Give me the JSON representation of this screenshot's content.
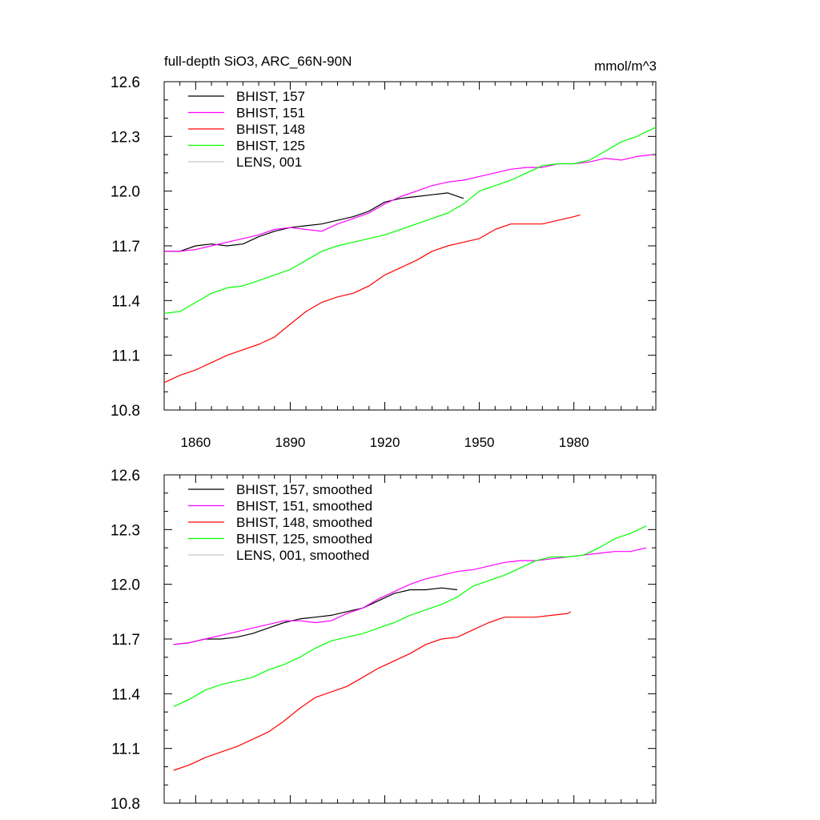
{
  "chart_data": [
    {
      "type": "line",
      "title": "full-depth SiO3, ARC_66N-90N",
      "units": "mmol/m^3",
      "xlim": [
        1850,
        2006
      ],
      "ylim": [
        10.8,
        12.6
      ],
      "xticks": [
        1860,
        1890,
        1920,
        1950,
        1980
      ],
      "xtick_labels": [
        "1860",
        "1890",
        "1920",
        "1950",
        "1980"
      ],
      "yticks": [
        10.8,
        11.1,
        11.4,
        11.7,
        12.0,
        12.3,
        12.6
      ],
      "ytick_labels": [
        "10.8",
        "11.1",
        "11.4",
        "11.7",
        "12.0",
        "12.3",
        "12.6"
      ],
      "legend_position": "top-left",
      "series": [
        {
          "name": "BHIST, 157",
          "color": "#000000",
          "x": [
            1850,
            1855,
            1860,
            1865,
            1870,
            1875,
            1880,
            1885,
            1890,
            1895,
            1900,
            1905,
            1910,
            1915,
            1920,
            1925,
            1930,
            1935,
            1940,
            1945
          ],
          "y": [
            11.67,
            11.67,
            11.7,
            11.71,
            11.7,
            11.71,
            11.75,
            11.78,
            11.8,
            11.81,
            11.82,
            11.84,
            11.86,
            11.89,
            11.94,
            11.96,
            11.97,
            11.98,
            11.99,
            11.96
          ]
        },
        {
          "name": "BHIST, 151",
          "color": "#ff00ff",
          "x": [
            1850,
            1855,
            1860,
            1865,
            1870,
            1875,
            1880,
            1885,
            1890,
            1895,
            1900,
            1905,
            1910,
            1915,
            1920,
            1925,
            1930,
            1935,
            1940,
            1945,
            1950,
            1955,
            1960,
            1965,
            1970,
            1975,
            1980,
            1985,
            1990,
            1995,
            2000,
            2005
          ],
          "y": [
            11.67,
            11.67,
            11.68,
            11.7,
            11.72,
            11.74,
            11.76,
            11.79,
            11.8,
            11.79,
            11.78,
            11.82,
            11.85,
            11.88,
            11.93,
            11.97,
            12.0,
            12.03,
            12.05,
            12.06,
            12.08,
            12.1,
            12.12,
            12.13,
            12.13,
            12.15,
            12.15,
            12.16,
            12.18,
            12.17,
            12.19,
            12.2
          ]
        },
        {
          "name": "BHIST, 148",
          "color": "#ff0000",
          "x": [
            1850,
            1855,
            1860,
            1865,
            1870,
            1875,
            1880,
            1885,
            1890,
            1895,
            1900,
            1905,
            1910,
            1915,
            1920,
            1925,
            1930,
            1935,
            1940,
            1945,
            1950,
            1955,
            1960,
            1965,
            1970,
            1975,
            1980,
            1982
          ],
          "y": [
            10.95,
            10.99,
            11.02,
            11.06,
            11.1,
            11.13,
            11.16,
            11.2,
            11.27,
            11.34,
            11.39,
            11.42,
            11.44,
            11.48,
            11.54,
            11.58,
            11.62,
            11.67,
            11.7,
            11.72,
            11.74,
            11.79,
            11.82,
            11.82,
            11.82,
            11.84,
            11.86,
            11.87
          ]
        },
        {
          "name": "BHIST, 125",
          "color": "#00ff00",
          "x": [
            1850,
            1855,
            1860,
            1865,
            1870,
            1875,
            1880,
            1885,
            1890,
            1895,
            1900,
            1905,
            1910,
            1915,
            1920,
            1925,
            1930,
            1935,
            1940,
            1945,
            1950,
            1955,
            1960,
            1965,
            1970,
            1975,
            1980,
            1985,
            1990,
            1995,
            2000,
            2006
          ],
          "y": [
            11.33,
            11.34,
            11.39,
            11.44,
            11.47,
            11.48,
            11.51,
            11.54,
            11.57,
            11.62,
            11.67,
            11.7,
            11.72,
            11.74,
            11.76,
            11.79,
            11.82,
            11.85,
            11.88,
            11.93,
            12.0,
            12.03,
            12.06,
            12.1,
            12.14,
            12.15,
            12.15,
            12.17,
            12.22,
            12.27,
            12.3,
            12.35
          ]
        },
        {
          "name": "LENS, 001",
          "color": "#c8c8c8",
          "x": [],
          "y": []
        }
      ]
    },
    {
      "type": "line",
      "title": "",
      "units": "",
      "xlim": [
        1850,
        2006
      ],
      "ylim": [
        10.8,
        12.6
      ],
      "xticks": [
        1860,
        1890,
        1920,
        1950,
        1980
      ],
      "xtick_labels": [],
      "yticks": [
        10.8,
        11.1,
        11.4,
        11.7,
        12.0,
        12.3,
        12.6
      ],
      "ytick_labels": [
        "10.8",
        "11.1",
        "11.4",
        "11.7",
        "12.0",
        "12.3",
        "12.6"
      ],
      "legend_position": "top-left",
      "series": [
        {
          "name": "BHIST, 157, smoothed",
          "color": "#000000",
          "x": [
            1853,
            1858,
            1863,
            1868,
            1873,
            1878,
            1883,
            1888,
            1893,
            1898,
            1903,
            1908,
            1913,
            1918,
            1923,
            1928,
            1933,
            1938,
            1943
          ],
          "y": [
            11.67,
            11.68,
            11.7,
            11.7,
            11.71,
            11.73,
            11.76,
            11.79,
            11.81,
            11.82,
            11.83,
            11.85,
            11.87,
            11.91,
            11.95,
            11.97,
            11.97,
            11.98,
            11.97
          ]
        },
        {
          "name": "BHIST, 151, smoothed",
          "color": "#ff00ff",
          "x": [
            1853,
            1858,
            1863,
            1868,
            1873,
            1878,
            1883,
            1888,
            1893,
            1898,
            1903,
            1908,
            1913,
            1918,
            1923,
            1928,
            1933,
            1938,
            1943,
            1948,
            1953,
            1958,
            1963,
            1968,
            1973,
            1978,
            1983,
            1988,
            1993,
            1998,
            2003
          ],
          "y": [
            11.67,
            11.68,
            11.7,
            11.72,
            11.74,
            11.76,
            11.78,
            11.8,
            11.8,
            11.79,
            11.8,
            11.84,
            11.87,
            11.92,
            11.96,
            12.0,
            12.03,
            12.05,
            12.07,
            12.08,
            12.1,
            12.12,
            12.13,
            12.13,
            12.14,
            12.15,
            12.16,
            12.17,
            12.18,
            12.18,
            12.2
          ]
        },
        {
          "name": "BHIST, 148, smoothed",
          "color": "#ff0000",
          "x": [
            1853,
            1858,
            1863,
            1868,
            1873,
            1878,
            1883,
            1888,
            1893,
            1898,
            1903,
            1908,
            1913,
            1918,
            1923,
            1928,
            1933,
            1938,
            1943,
            1948,
            1953,
            1958,
            1963,
            1968,
            1973,
            1978,
            1979
          ],
          "y": [
            10.98,
            11.01,
            11.05,
            11.08,
            11.11,
            11.15,
            11.19,
            11.25,
            11.32,
            11.38,
            11.41,
            11.44,
            11.49,
            11.54,
            11.58,
            11.62,
            11.67,
            11.7,
            11.71,
            11.75,
            11.79,
            11.82,
            11.82,
            11.82,
            11.83,
            11.84,
            11.85
          ]
        },
        {
          "name": "BHIST, 125, smoothed",
          "color": "#00ff00",
          "x": [
            1853,
            1858,
            1863,
            1868,
            1873,
            1878,
            1883,
            1888,
            1893,
            1898,
            1903,
            1908,
            1913,
            1918,
            1923,
            1928,
            1933,
            1938,
            1943,
            1948,
            1953,
            1958,
            1963,
            1968,
            1973,
            1978,
            1983,
            1988,
            1993,
            1998,
            2003
          ],
          "y": [
            11.33,
            11.37,
            11.42,
            11.45,
            11.47,
            11.49,
            11.53,
            11.56,
            11.6,
            11.65,
            11.69,
            11.71,
            11.73,
            11.76,
            11.79,
            11.83,
            11.86,
            11.89,
            11.93,
            11.99,
            12.02,
            12.05,
            12.09,
            12.13,
            12.15,
            12.15,
            12.16,
            12.2,
            12.25,
            12.28,
            12.32
          ]
        },
        {
          "name": "LENS, 001, smoothed",
          "color": "#c8c8c8",
          "x": [],
          "y": []
        }
      ]
    }
  ]
}
